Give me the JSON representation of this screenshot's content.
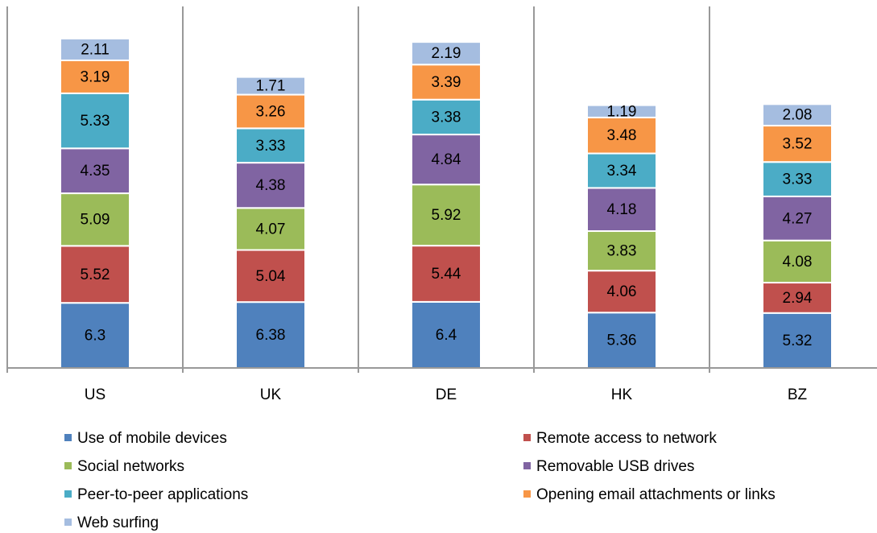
{
  "chart_data": {
    "type": "stacked-bar",
    "categories": [
      "US",
      "UK",
      "DE",
      "HK",
      "BZ"
    ],
    "ylim": [
      0,
      35
    ],
    "legend": "bottom",
    "series": [
      {
        "name": "Use of mobile devices",
        "color": "#4f81bd",
        "values": [
          6.3,
          6.38,
          6.4,
          5.36,
          5.32
        ]
      },
      {
        "name": "Remote access to network",
        "color": "#c0504d",
        "values": [
          5.52,
          5.04,
          5.44,
          4.06,
          2.94
        ]
      },
      {
        "name": "Social networks",
        "color": "#9bbb59",
        "values": [
          5.09,
          4.07,
          5.92,
          3.83,
          4.08
        ]
      },
      {
        "name": "Removable USB drives",
        "color": "#8064a2",
        "values": [
          4.35,
          4.38,
          4.84,
          4.18,
          4.27
        ]
      },
      {
        "name": "Peer-to-peer applications",
        "color": "#4bacc6",
        "values": [
          5.33,
          3.33,
          3.38,
          3.34,
          3.33
        ]
      },
      {
        "name": "Opening email attachments or links",
        "color": "#f79646",
        "values": [
          3.19,
          3.26,
          3.39,
          3.48,
          3.52
        ]
      },
      {
        "name": "Web surfing",
        "color": "#a5bde0",
        "values": [
          2.11,
          1.71,
          2.19,
          1.19,
          2.08
        ]
      }
    ]
  }
}
